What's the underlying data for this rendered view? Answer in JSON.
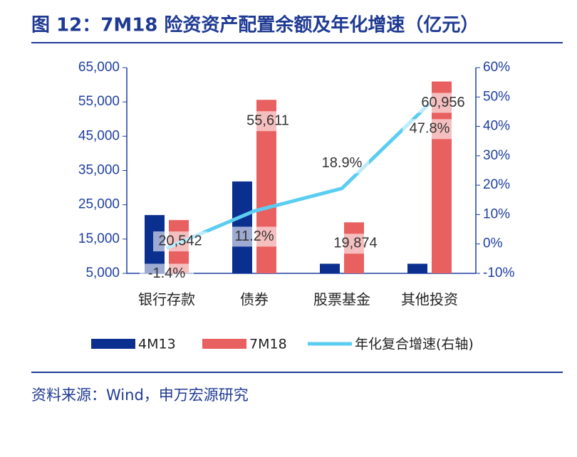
{
  "chart_data": {
    "type": "bar",
    "title": "图 12：7M18 险资资产配置余额及年化增速（亿元）",
    "source": "资料来源：Wind，申万宏源研究",
    "categories": [
      "银行存款",
      "债券",
      "股票基金",
      "其他投资"
    ],
    "series": [
      {
        "name": "4M13",
        "color": "#0b2f8f",
        "values": [
          22000,
          31800,
          7800,
          7800
        ]
      },
      {
        "name": "7M18",
        "color": "#e8605f",
        "values": [
          20542,
          55611,
          19874,
          60956
        ],
        "value_labels": [
          "20,542",
          "55,611",
          "19,874",
          "60,956"
        ]
      },
      {
        "name": "年化复合增速(右轴)",
        "type": "line",
        "axis": "y2",
        "color": "#5bcdf2",
        "values": [
          -1.4,
          11.2,
          18.9,
          47.8
        ],
        "value_labels": [
          "-1.4%",
          "11.2%",
          "18.9%",
          "47.8%"
        ]
      }
    ],
    "ylim": [
      5000,
      65000
    ],
    "yticks": [
      {
        "value": 5000,
        "label": "5,000"
      },
      {
        "value": 15000,
        "label": "15,000"
      },
      {
        "value": 25000,
        "label": "25,000"
      },
      {
        "value": 35000,
        "label": "35,000"
      },
      {
        "value": 45000,
        "label": "45,000"
      },
      {
        "value": 55000,
        "label": "55,000"
      },
      {
        "value": 65000,
        "label": "65,000"
      }
    ],
    "y2lim": [
      -10,
      60
    ],
    "y2ticks": [
      {
        "value": -10,
        "label": "-10%"
      },
      {
        "value": 0,
        "label": "0%"
      },
      {
        "value": 10,
        "label": "10%"
      },
      {
        "value": 20,
        "label": "20%"
      },
      {
        "value": 30,
        "label": "30%"
      },
      {
        "value": 40,
        "label": "40%"
      },
      {
        "value": 50,
        "label": "50%"
      },
      {
        "value": 60,
        "label": "60%"
      }
    ]
  }
}
